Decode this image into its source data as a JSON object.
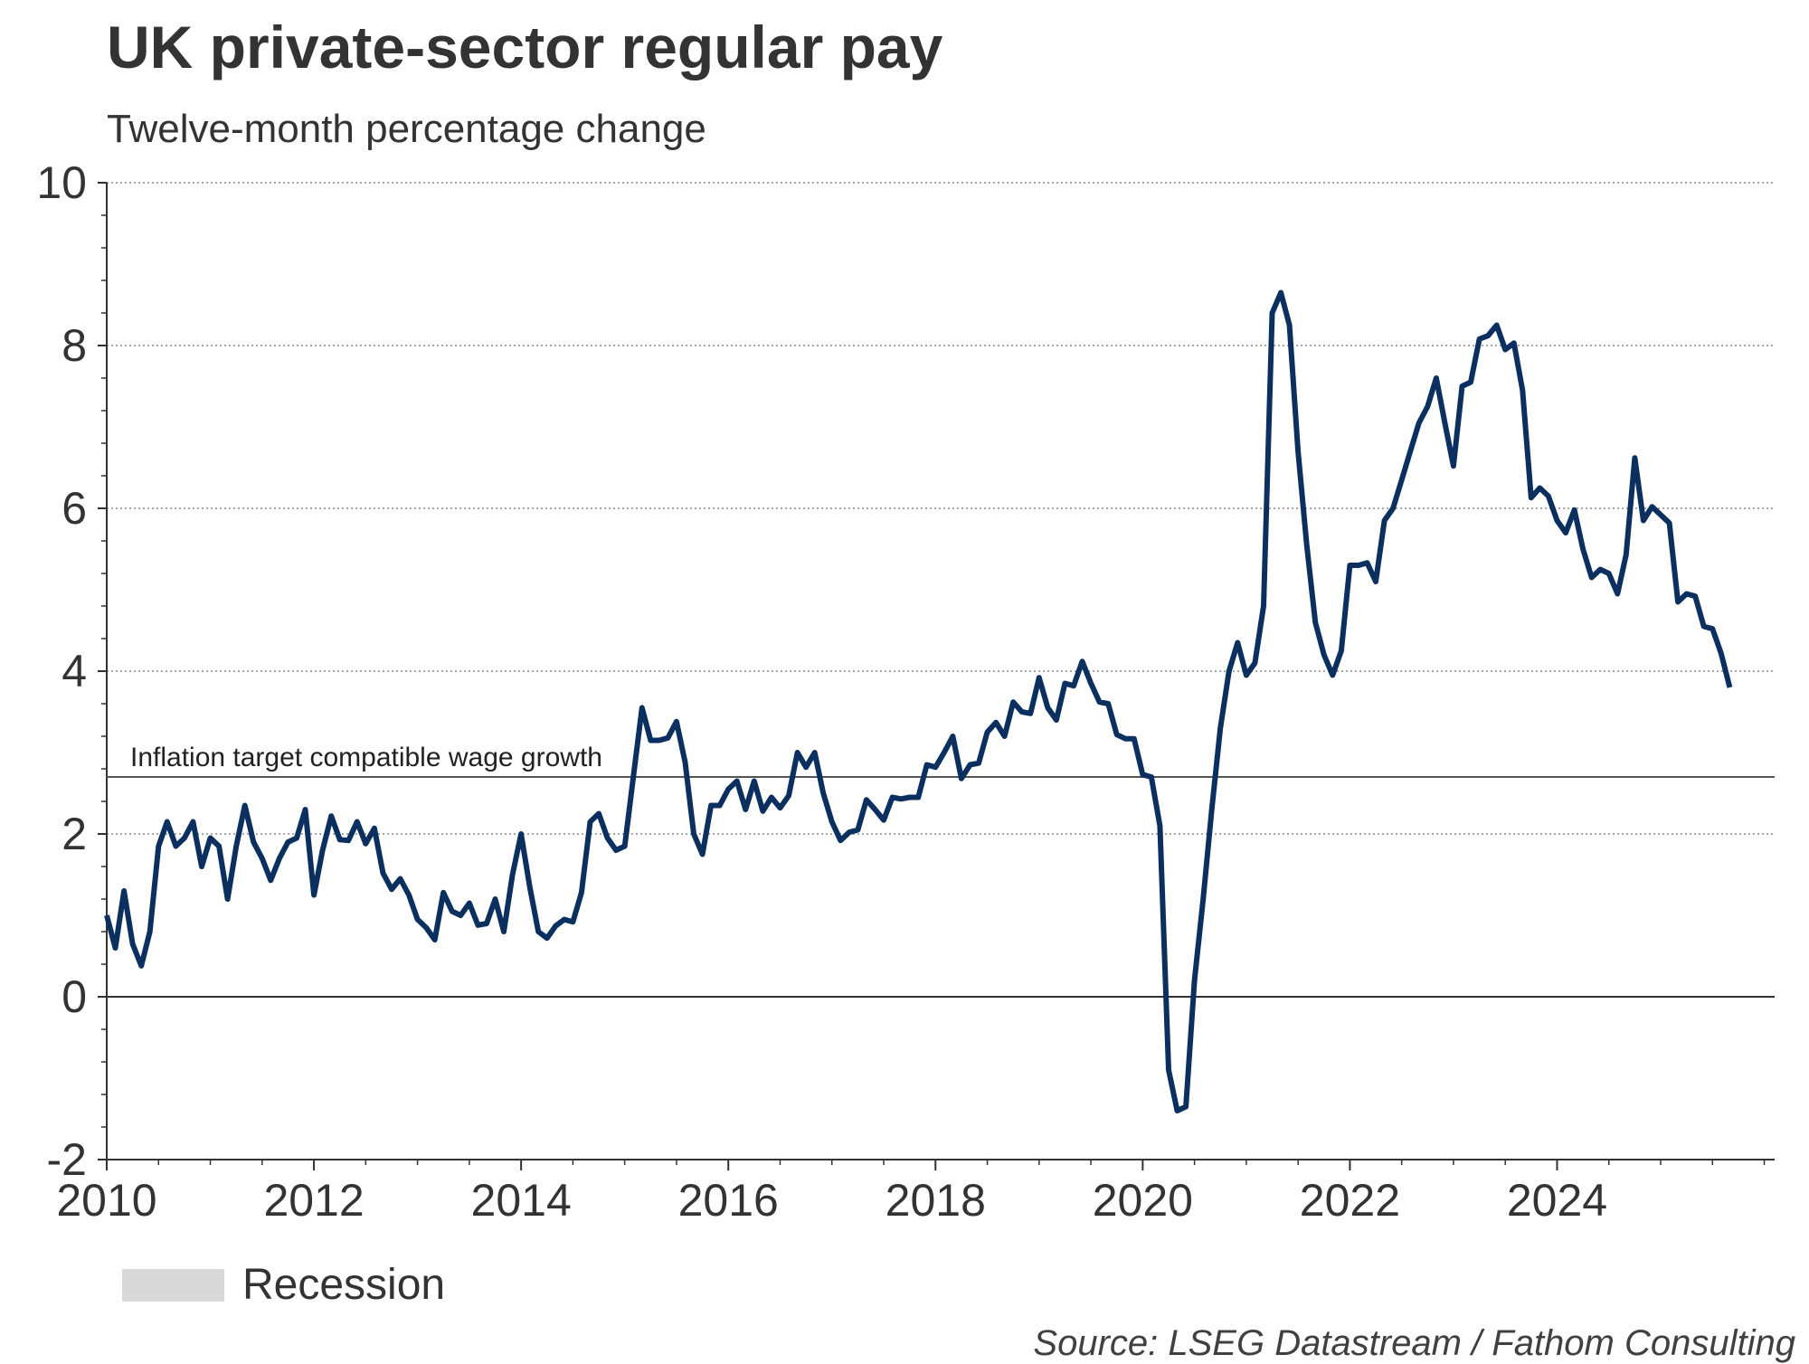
{
  "title": "UK private-sector regular pay",
  "subtitle": "Twelve-month percentage change",
  "source": "Source: LSEG Datastream / Fathom Consulting",
  "legend": {
    "recession_label": "Recession",
    "recession_color": "#d9d9d9"
  },
  "colors": {
    "series": "#0b3060",
    "axis": "#333333",
    "grid": "#8c8c8c"
  },
  "chart_data": {
    "type": "line",
    "title": "UK private-sector regular pay",
    "subtitle": "Twelve-month percentage change",
    "xlabel": "",
    "ylabel": "",
    "xlim": [
      2010,
      2026.1
    ],
    "ylim": [
      -2,
      10
    ],
    "x_ticks": [
      "2010",
      "2012",
      "2014",
      "2016",
      "2018",
      "2020",
      "2022",
      "2024"
    ],
    "y_ticks": [
      "-2",
      "0",
      "2",
      "4",
      "6",
      "8",
      "10"
    ],
    "grid": "horizontal dotted",
    "reference_line": {
      "value": 2.7,
      "label": "Inflation target compatible wage growth"
    },
    "series": [
      {
        "name": "UK private-sector regular pay",
        "color": "#0b3060",
        "x_start": 2010,
        "step_months": 1,
        "values": [
          1.0,
          0.6,
          1.3,
          0.65,
          0.38,
          0.8,
          1.85,
          2.15,
          1.85,
          1.95,
          2.15,
          1.6,
          1.95,
          1.85,
          1.2,
          1.85,
          2.35,
          1.9,
          1.7,
          1.43,
          1.7,
          1.9,
          1.95,
          2.3,
          1.25,
          1.8,
          2.22,
          1.93,
          1.92,
          2.15,
          1.88,
          2.07,
          1.52,
          1.32,
          1.45,
          1.25,
          0.95,
          0.85,
          0.7,
          1.28,
          1.05,
          1.0,
          1.15,
          0.88,
          0.9,
          1.2,
          0.8,
          1.5,
          2.0,
          1.35,
          0.8,
          0.72,
          0.87,
          0.95,
          0.92,
          1.28,
          2.15,
          2.25,
          1.95,
          1.8,
          1.85,
          2.7,
          3.55,
          3.15,
          3.15,
          3.18,
          3.38,
          2.88,
          2.0,
          1.75,
          2.35,
          2.35,
          2.55,
          2.65,
          2.3,
          2.65,
          2.28,
          2.45,
          2.32,
          2.47,
          3.0,
          2.82,
          3.0,
          2.5,
          2.15,
          1.92,
          2.02,
          2.05,
          2.42,
          2.3,
          2.17,
          2.45,
          2.43,
          2.45,
          2.45,
          2.85,
          2.82,
          3.0,
          3.2,
          2.68,
          2.85,
          2.87,
          3.25,
          3.37,
          3.2,
          3.62,
          3.5,
          3.48,
          3.92,
          3.55,
          3.4,
          3.85,
          3.82,
          4.12,
          3.85,
          3.62,
          3.6,
          3.22,
          3.17,
          3.17,
          2.73,
          2.7,
          2.1,
          -0.9,
          -1.4,
          -1.35,
          0.2,
          1.2,
          2.3,
          3.3,
          4.0,
          4.35,
          3.95,
          4.1,
          4.8,
          8.4,
          8.65,
          8.25,
          6.7,
          5.55,
          4.6,
          4.2,
          3.95,
          4.25,
          5.3,
          5.3,
          5.33,
          5.1,
          5.85,
          6.0,
          6.35,
          6.7,
          7.05,
          7.25,
          7.6,
          7.05,
          6.52,
          7.5,
          7.55,
          8.08,
          8.12,
          8.25,
          7.95,
          8.03,
          7.45,
          6.13,
          6.25,
          6.15,
          5.85,
          5.7,
          5.98,
          5.5,
          5.15,
          5.25,
          5.2,
          4.95,
          5.43,
          6.62,
          5.85,
          6.02,
          5.92,
          5.82,
          4.85,
          4.95,
          4.92,
          4.55,
          4.52,
          4.22,
          3.8
        ]
      }
    ]
  }
}
